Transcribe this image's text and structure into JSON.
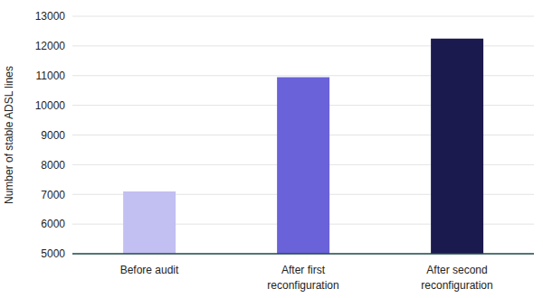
{
  "chart_data": {
    "type": "bar",
    "y_label": "Number of stable ADSL lines",
    "categories": [
      "Before audit",
      "After first reconfiguration",
      "After second reconfiguration"
    ],
    "values": [
      7100,
      10950,
      12250
    ],
    "colors": [
      "#c2bff2",
      "#6a62d8",
      "#1b1a4e"
    ],
    "ylim": [
      5000,
      13000
    ],
    "yticks": [
      5000,
      6000,
      7000,
      8000,
      9000,
      10000,
      11000,
      12000,
      13000
    ],
    "grid": true
  }
}
